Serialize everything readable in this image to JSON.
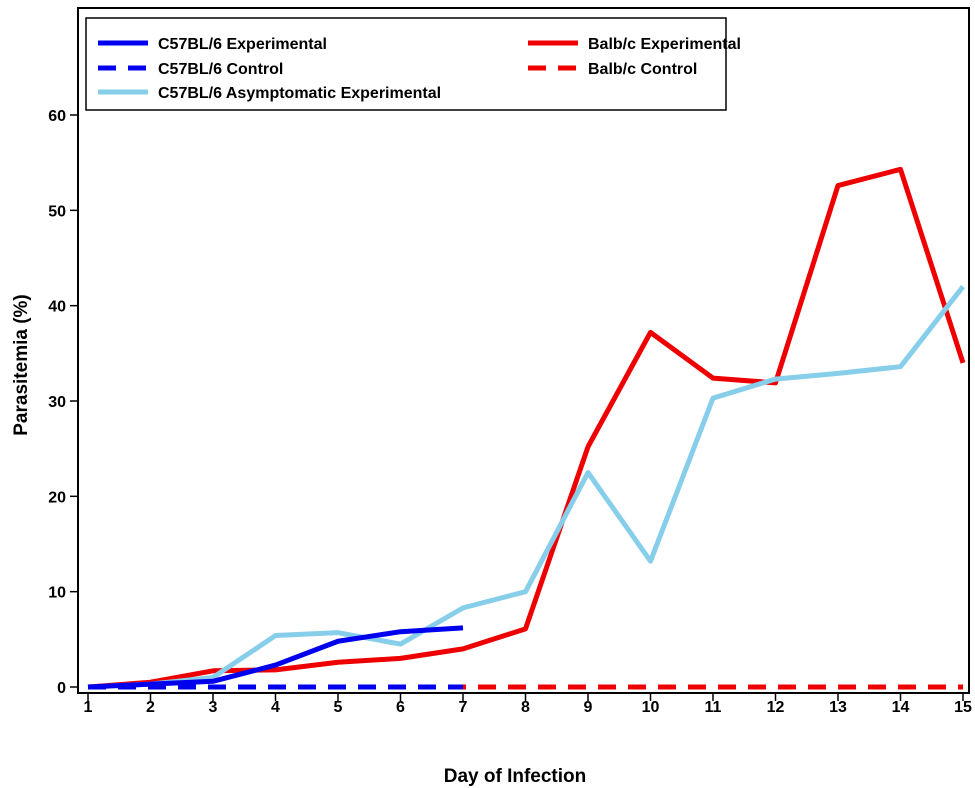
{
  "chart_data": {
    "type": "line",
    "xlabel": "Day of Infection",
    "ylabel": "Parasitemia (%)",
    "x": [
      1,
      2,
      3,
      4,
      5,
      6,
      7,
      8,
      9,
      10,
      11,
      12,
      13,
      14,
      15
    ],
    "xlim": [
      1,
      15
    ],
    "ylim": [
      -1.5,
      70
    ],
    "xticks": [
      "1",
      "2",
      "3",
      "4",
      "5",
      "6",
      "7",
      "8",
      "9",
      "10",
      "11",
      "12",
      "13",
      "14",
      "15"
    ],
    "yticks": [
      "0",
      "10",
      "20",
      "30",
      "40",
      "50",
      "60"
    ],
    "ytick_values": [
      0,
      10,
      20,
      30,
      40,
      50,
      60
    ],
    "grid": false,
    "legend_position": "top",
    "series": [
      {
        "name": "C57BL/6 Experimental",
        "color": "#0000ee",
        "dash": "solid",
        "values": [
          0,
          0.3,
          0.6,
          2.3,
          4.8,
          5.8,
          6.2,
          null,
          null,
          null,
          null,
          null,
          null,
          null,
          null
        ]
      },
      {
        "name": "C57BL/6 Control",
        "color": "#0000ee",
        "dash": "dashed",
        "values": [
          0,
          0,
          0,
          0,
          0,
          0,
          0,
          null,
          null,
          null,
          null,
          null,
          null,
          null,
          null
        ]
      },
      {
        "name": "C57BL/6 Asymptomatic Experimental",
        "color": "#87ceeb",
        "dash": "solid",
        "values": [
          0,
          0.3,
          1.0,
          5.4,
          5.7,
          4.5,
          8.3,
          10.0,
          22.5,
          13.2,
          30.3,
          32.3,
          32.9,
          33.6,
          42.0
        ]
      },
      {
        "name": "Balb/c Experimental",
        "color": "#ee0000",
        "dash": "solid",
        "values": [
          0,
          0.5,
          1.7,
          1.8,
          2.6,
          3.0,
          4.0,
          6.1,
          25.2,
          37.2,
          32.4,
          31.9,
          52.6,
          54.3,
          34.0
        ]
      },
      {
        "name": "Balb/c Control",
        "color": "#ee0000",
        "dash": "dashed",
        "values": [
          0,
          0,
          0,
          0,
          0,
          0,
          0,
          0,
          0,
          0,
          0,
          0,
          0,
          0,
          0
        ]
      }
    ]
  }
}
